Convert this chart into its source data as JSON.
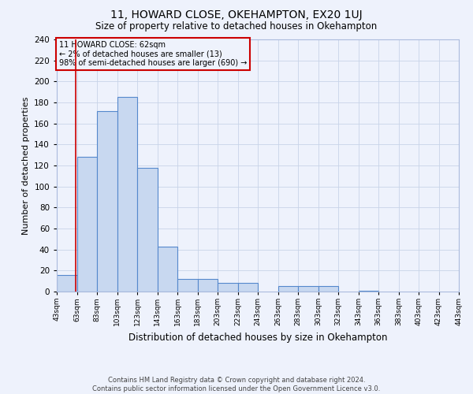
{
  "title": "11, HOWARD CLOSE, OKEHAMPTON, EX20 1UJ",
  "subtitle": "Size of property relative to detached houses in Okehampton",
  "xlabel": "Distribution of detached houses by size in Okehampton",
  "ylabel": "Number of detached properties",
  "footer_line1": "Contains HM Land Registry data © Crown copyright and database right 2024.",
  "footer_line2": "Contains public sector information licensed under the Open Government Licence v3.0.",
  "annotation_title": "11 HOWARD CLOSE: 62sqm",
  "annotation_line1": "← 2% of detached houses are smaller (13)",
  "annotation_line2": "98% of semi-detached houses are larger (690) →",
  "property_size": 62,
  "bin_edges": [
    43,
    63,
    83,
    103,
    123,
    143,
    163,
    183,
    203,
    223,
    243,
    263,
    283,
    303,
    323,
    343,
    363,
    383,
    403,
    423,
    443
  ],
  "bar_heights": [
    16,
    128,
    172,
    185,
    118,
    43,
    12,
    12,
    8,
    8,
    0,
    5,
    5,
    5,
    0,
    1,
    0,
    0,
    0,
    0
  ],
  "bar_color": "#c8d8f0",
  "bar_edge_color": "#5588cc",
  "grid_color": "#c8d4e8",
  "annotation_box_color": "#cc0000",
  "vline_color": "#cc0000",
  "ylim": [
    0,
    240
  ],
  "yticks": [
    0,
    20,
    40,
    60,
    80,
    100,
    120,
    140,
    160,
    180,
    200,
    220,
    240
  ],
  "background_color": "#eef2fc"
}
